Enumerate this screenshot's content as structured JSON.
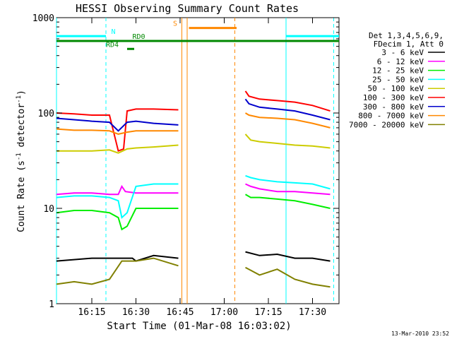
{
  "chart_data": {
    "type": "line",
    "title": "HESSI Observing Summary Count Rates",
    "xlabel": "Start Time (01-Mar-08 16:03:02)",
    "ylabel_prefix": "Count Rate (s",
    "ylabel_exp1": "-1",
    "ylabel_mid": " detector",
    "ylabel_exp2": "-1",
    "ylabel_suffix": ")",
    "yscale": "log",
    "ylim": [
      1,
      1000
    ],
    "xlim_minutes": [
      16.05,
      17.65
    ],
    "yticks": [
      {
        "value": 1,
        "label": "1"
      },
      {
        "value": 10,
        "label": "10"
      },
      {
        "value": 100,
        "label": "100"
      },
      {
        "value": 1000,
        "label": "1000"
      }
    ],
    "xticks": [
      {
        "value": 16.25,
        "label": "16:15"
      },
      {
        "value": 16.5,
        "label": "16:30"
      },
      {
        "value": 16.75,
        "label": "16:45"
      },
      {
        "value": 17.0,
        "label": "17:00"
      },
      {
        "value": 17.25,
        "label": "17:15"
      },
      {
        "value": 17.5,
        "label": "17:30"
      }
    ],
    "legend": {
      "placement": "right",
      "header": [
        "Det 1,3,4,5,6,9,",
        "FDecim 1, Att 0"
      ]
    },
    "annotations": {
      "N": "N",
      "S": "S",
      "RD0": "RD0",
      "RD4": "RD4"
    },
    "series": [
      {
        "name": "3 - 6 keV",
        "color": "#000000",
        "segments": [
          {
            "x": [
              16.05,
              16.25,
              16.4,
              16.48,
              16.5,
              16.6,
              16.74
            ],
            "y": [
              2.8,
              3.0,
              3.0,
              3.0,
              2.8,
              3.2,
              3.0
            ]
          },
          {
            "x": [
              17.12,
              17.2,
              17.3,
              17.4,
              17.5,
              17.6
            ],
            "y": [
              3.5,
              3.2,
              3.3,
              3.0,
              3.0,
              2.8
            ]
          }
        ]
      },
      {
        "name": "6 - 12 keV",
        "color": "#ff00ff",
        "segments": [
          {
            "x": [
              16.05,
              16.15,
              16.25,
              16.35,
              16.4,
              16.42,
              16.44,
              16.5,
              16.6,
              16.74
            ],
            "y": [
              14,
              14.5,
              14.5,
              14,
              14,
              17,
              15,
              14.5,
              14.5,
              14.5
            ]
          },
          {
            "x": [
              17.12,
              17.15,
              17.2,
              17.3,
              17.4,
              17.5,
              17.6
            ],
            "y": [
              18,
              17,
              16,
              15,
              15,
              14.5,
              14
            ]
          }
        ]
      },
      {
        "name": "12 - 25 keV",
        "color": "#00ee00",
        "segments": [
          {
            "x": [
              16.05,
              16.15,
              16.25,
              16.35,
              16.4,
              16.42,
              16.45,
              16.5,
              16.6,
              16.74
            ],
            "y": [
              9,
              9.5,
              9.5,
              9,
              8,
              6,
              6.5,
              10,
              10,
              10
            ]
          },
          {
            "x": [
              17.12,
              17.15,
              17.2,
              17.3,
              17.4,
              17.5,
              17.6
            ],
            "y": [
              14,
              13,
              13,
              12.5,
              12,
              11,
              10
            ]
          }
        ]
      },
      {
        "name": "25 - 50 keV",
        "color": "#00ffff",
        "segments": [
          {
            "x": [
              16.05,
              16.15,
              16.25,
              16.35,
              16.4,
              16.42,
              16.45,
              16.5,
              16.6,
              16.74
            ],
            "y": [
              13,
              13.5,
              13.5,
              13,
              12,
              8,
              9,
              17,
              18,
              18
            ]
          },
          {
            "x": [
              17.12,
              17.15,
              17.2,
              17.3,
              17.4,
              17.5,
              17.6
            ],
            "y": [
              22,
              21,
              20,
              19,
              18.5,
              18,
              16
            ]
          }
        ]
      },
      {
        "name": "50 - 100 keV",
        "color": "#cccc00",
        "segments": [
          {
            "x": [
              16.05,
              16.15,
              16.25,
              16.35,
              16.4,
              16.45,
              16.5,
              16.6,
              16.74
            ],
            "y": [
              40,
              40,
              40,
              41,
              38,
              42,
              43,
              44,
              46
            ]
          },
          {
            "x": [
              17.12,
              17.15,
              17.2,
              17.3,
              17.4,
              17.5,
              17.6
            ],
            "y": [
              60,
              52,
              50,
              48,
              46,
              45,
              43
            ]
          }
        ]
      },
      {
        "name": "100 - 300 keV",
        "color": "#ff0000",
        "segments": [
          {
            "x": [
              16.05,
              16.15,
              16.25,
              16.35,
              16.4,
              16.43,
              16.45,
              16.5,
              16.6,
              16.74
            ],
            "y": [
              100,
              98,
              95,
              95,
              40,
              42,
              105,
              110,
              110,
              108
            ]
          },
          {
            "x": [
              17.12,
              17.14,
              17.2,
              17.3,
              17.4,
              17.5,
              17.6
            ],
            "y": [
              170,
              150,
              140,
              135,
              130,
              120,
              105
            ]
          }
        ]
      },
      {
        "name": "300 - 800 keV",
        "color": "#0000cc",
        "segments": [
          {
            "x": [
              16.05,
              16.15,
              16.25,
              16.35,
              16.4,
              16.45,
              16.5,
              16.6,
              16.74
            ],
            "y": [
              88,
              85,
              82,
              80,
              65,
              80,
              82,
              78,
              75
            ]
          },
          {
            "x": [
              17.12,
              17.14,
              17.2,
              17.3,
              17.4,
              17.5,
              17.6
            ],
            "y": [
              140,
              125,
              115,
              110,
              105,
              95,
              85
            ]
          }
        ]
      },
      {
        "name": "800 - 7000 keV",
        "color": "#ff8800",
        "segments": [
          {
            "x": [
              16.05,
              16.15,
              16.25,
              16.35,
              16.4,
              16.45,
              16.5,
              16.6,
              16.74
            ],
            "y": [
              68,
              66,
              66,
              65,
              60,
              63,
              65,
              65,
              65
            ]
          },
          {
            "x": [
              17.12,
              17.14,
              17.2,
              17.3,
              17.4,
              17.5,
              17.6
            ],
            "y": [
              100,
              95,
              90,
              88,
              85,
              78,
              70
            ]
          }
        ]
      },
      {
        "name": "7000 - 20000 keV",
        "color": "#808000",
        "segments": [
          {
            "x": [
              16.05,
              16.15,
              16.25,
              16.35,
              16.42,
              16.5,
              16.6,
              16.74
            ],
            "y": [
              1.6,
              1.7,
              1.6,
              1.8,
              2.8,
              2.8,
              3.0,
              2.5
            ]
          },
          {
            "x": [
              17.12,
              17.2,
              17.3,
              17.4,
              17.5,
              17.6
            ],
            "y": [
              2.4,
              2.0,
              2.3,
              1.8,
              1.6,
              1.5
            ]
          }
        ]
      }
    ],
    "flags": [
      {
        "label_key": "N",
        "color": "#00ffff",
        "y": 640,
        "ranges": [
          [
            16.05,
            16.33
          ],
          [
            17.35,
            17.65
          ]
        ],
        "label_at": 16.36
      },
      {
        "label_key": "S",
        "color": "#ff8800",
        "y": 780,
        "ranges": [
          [
            16.8,
            17.07
          ]
        ],
        "label_at": 16.71
      },
      {
        "label_key": "RD0",
        "color": "#008800",
        "y": 570,
        "ranges": [
          [
            16.05,
            17.65
          ]
        ],
        "label_at": 16.48
      },
      {
        "label_key": "RD4",
        "color": "#008800",
        "y": 470,
        "ranges": [
          [
            16.45,
            16.49
          ]
        ],
        "label_at": 16.33
      }
    ],
    "vlines": [
      {
        "x": 16.05,
        "color": "#00ffff",
        "dashed": false
      },
      {
        "x": 16.33,
        "color": "#00ffff",
        "dashed": true
      },
      {
        "x": 17.35,
        "color": "#00ffff",
        "dashed": false
      },
      {
        "x": 17.62,
        "color": "#00ffff",
        "dashed": true
      },
      {
        "x": 16.76,
        "color": "#ff8800",
        "dashed": false
      },
      {
        "x": 16.79,
        "color": "#ff8800",
        "dashed": false
      },
      {
        "x": 17.06,
        "color": "#ff8800",
        "dashed": true
      }
    ]
  },
  "footer_date": "13-Mar-2010 23:52"
}
